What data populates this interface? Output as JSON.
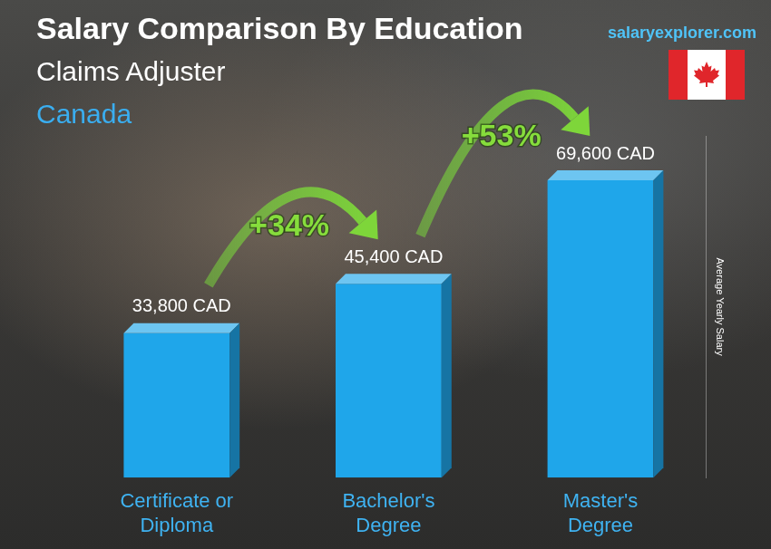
{
  "chart_data": {
    "type": "bar",
    "title": "Salary Comparison By Education",
    "subtitle": "Claims Adjuster",
    "location": "Canada",
    "source": "salaryexplorer.com",
    "y_label": "Average Yearly Salary",
    "categories": [
      "Certificate or Diploma",
      "Bachelor's Degree",
      "Master's Degree"
    ],
    "values": [
      33800,
      45400,
      69600
    ],
    "value_labels": [
      "33,800 CAD",
      "45,400 CAD",
      "69,600 CAD"
    ],
    "color": "#1fa6ea",
    "data_labels": true,
    "annotations": [
      {
        "from": "Certificate or Diploma",
        "to": "Bachelor's Degree",
        "label": "+34%"
      },
      {
        "from": "Bachelor's Degree",
        "to": "Master's Degree",
        "label": "+53%"
      }
    ],
    "ylim": [
      0,
      80000
    ],
    "grid": false,
    "tick_labels": "x"
  }
}
